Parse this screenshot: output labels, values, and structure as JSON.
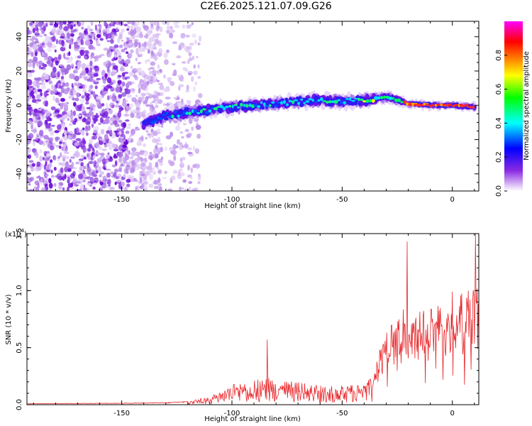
{
  "title": "C2E6.2025.121.07.09.G26",
  "chart_data": [
    {
      "type": "heatmap",
      "xlabel": "Height of straight line (km)",
      "ylabel": "Frequency (Hz)",
      "xlim": [
        -193,
        12
      ],
      "ylim": [
        -50,
        49
      ],
      "x_ticks": [
        -150,
        -100,
        -50,
        0
      ],
      "y_ticks": [
        -40,
        -20,
        0,
        20,
        40
      ],
      "colorbar": {
        "label": "Normalized spectral amplitude",
        "range": [
          0,
          1
        ],
        "ticks": [
          0.0,
          0.2,
          0.4,
          0.6,
          0.8
        ],
        "colors": [
          "#ffffff",
          "#8a2be2",
          "#0000ff",
          "#00ffff",
          "#00ff00",
          "#ffff00",
          "#ff7f00",
          "#ff0000",
          "#ff00ff"
        ]
      },
      "ridge": {
        "x": [
          -140,
          -130,
          -120,
          -110,
          -100,
          -90,
          -80,
          -70,
          -60,
          -50,
          -40,
          -35,
          -30,
          -25,
          -20,
          -10,
          0,
          10
        ],
        "y": [
          -11,
          -6,
          -4,
          -3,
          -1,
          0,
          1,
          2,
          3,
          2,
          3,
          4,
          5,
          3,
          1,
          0,
          0,
          -1
        ]
      },
      "noise_region_x": [
        -193,
        -122
      ],
      "grid": false,
      "legend": "none"
    },
    {
      "type": "line",
      "xlabel": "Height of straight line (km)",
      "ylabel": "SNR (10 * v/v)",
      "y_multiplier": "(x10^4)",
      "xlim": [
        -193,
        12
      ],
      "ylim": [
        0,
        1.5
      ],
      "x_ticks": [
        -150,
        -100,
        -50,
        0
      ],
      "y_ticks": [
        0.0,
        0.5,
        1.0,
        1.5
      ],
      "color": "#e8262a",
      "envelope": {
        "x": [
          -193,
          -150,
          -130,
          -120,
          -110,
          -105,
          -100,
          -90,
          -85,
          -80,
          -70,
          -60,
          -50,
          -40,
          -36,
          -33,
          -30,
          -25,
          -22,
          -20,
          -15,
          -10,
          -5,
          0,
          5,
          8,
          10,
          12
        ],
        "y": [
          0.01,
          0.015,
          0.02,
          0.03,
          0.07,
          0.12,
          0.18,
          0.22,
          0.25,
          0.22,
          0.2,
          0.17,
          0.17,
          0.2,
          0.24,
          0.5,
          0.65,
          0.75,
          0.85,
          0.8,
          0.82,
          0.9,
          0.98,
          1.02,
          1.05,
          1.1,
          1.08,
          1.0
        ]
      },
      "spikes": [
        {
          "x": -84,
          "y": 0.57
        },
        {
          "x": -20.5,
          "y": 1.43
        },
        {
          "x": 10.5,
          "y": 1.5
        }
      ],
      "grid": false,
      "legend": "none"
    }
  ]
}
